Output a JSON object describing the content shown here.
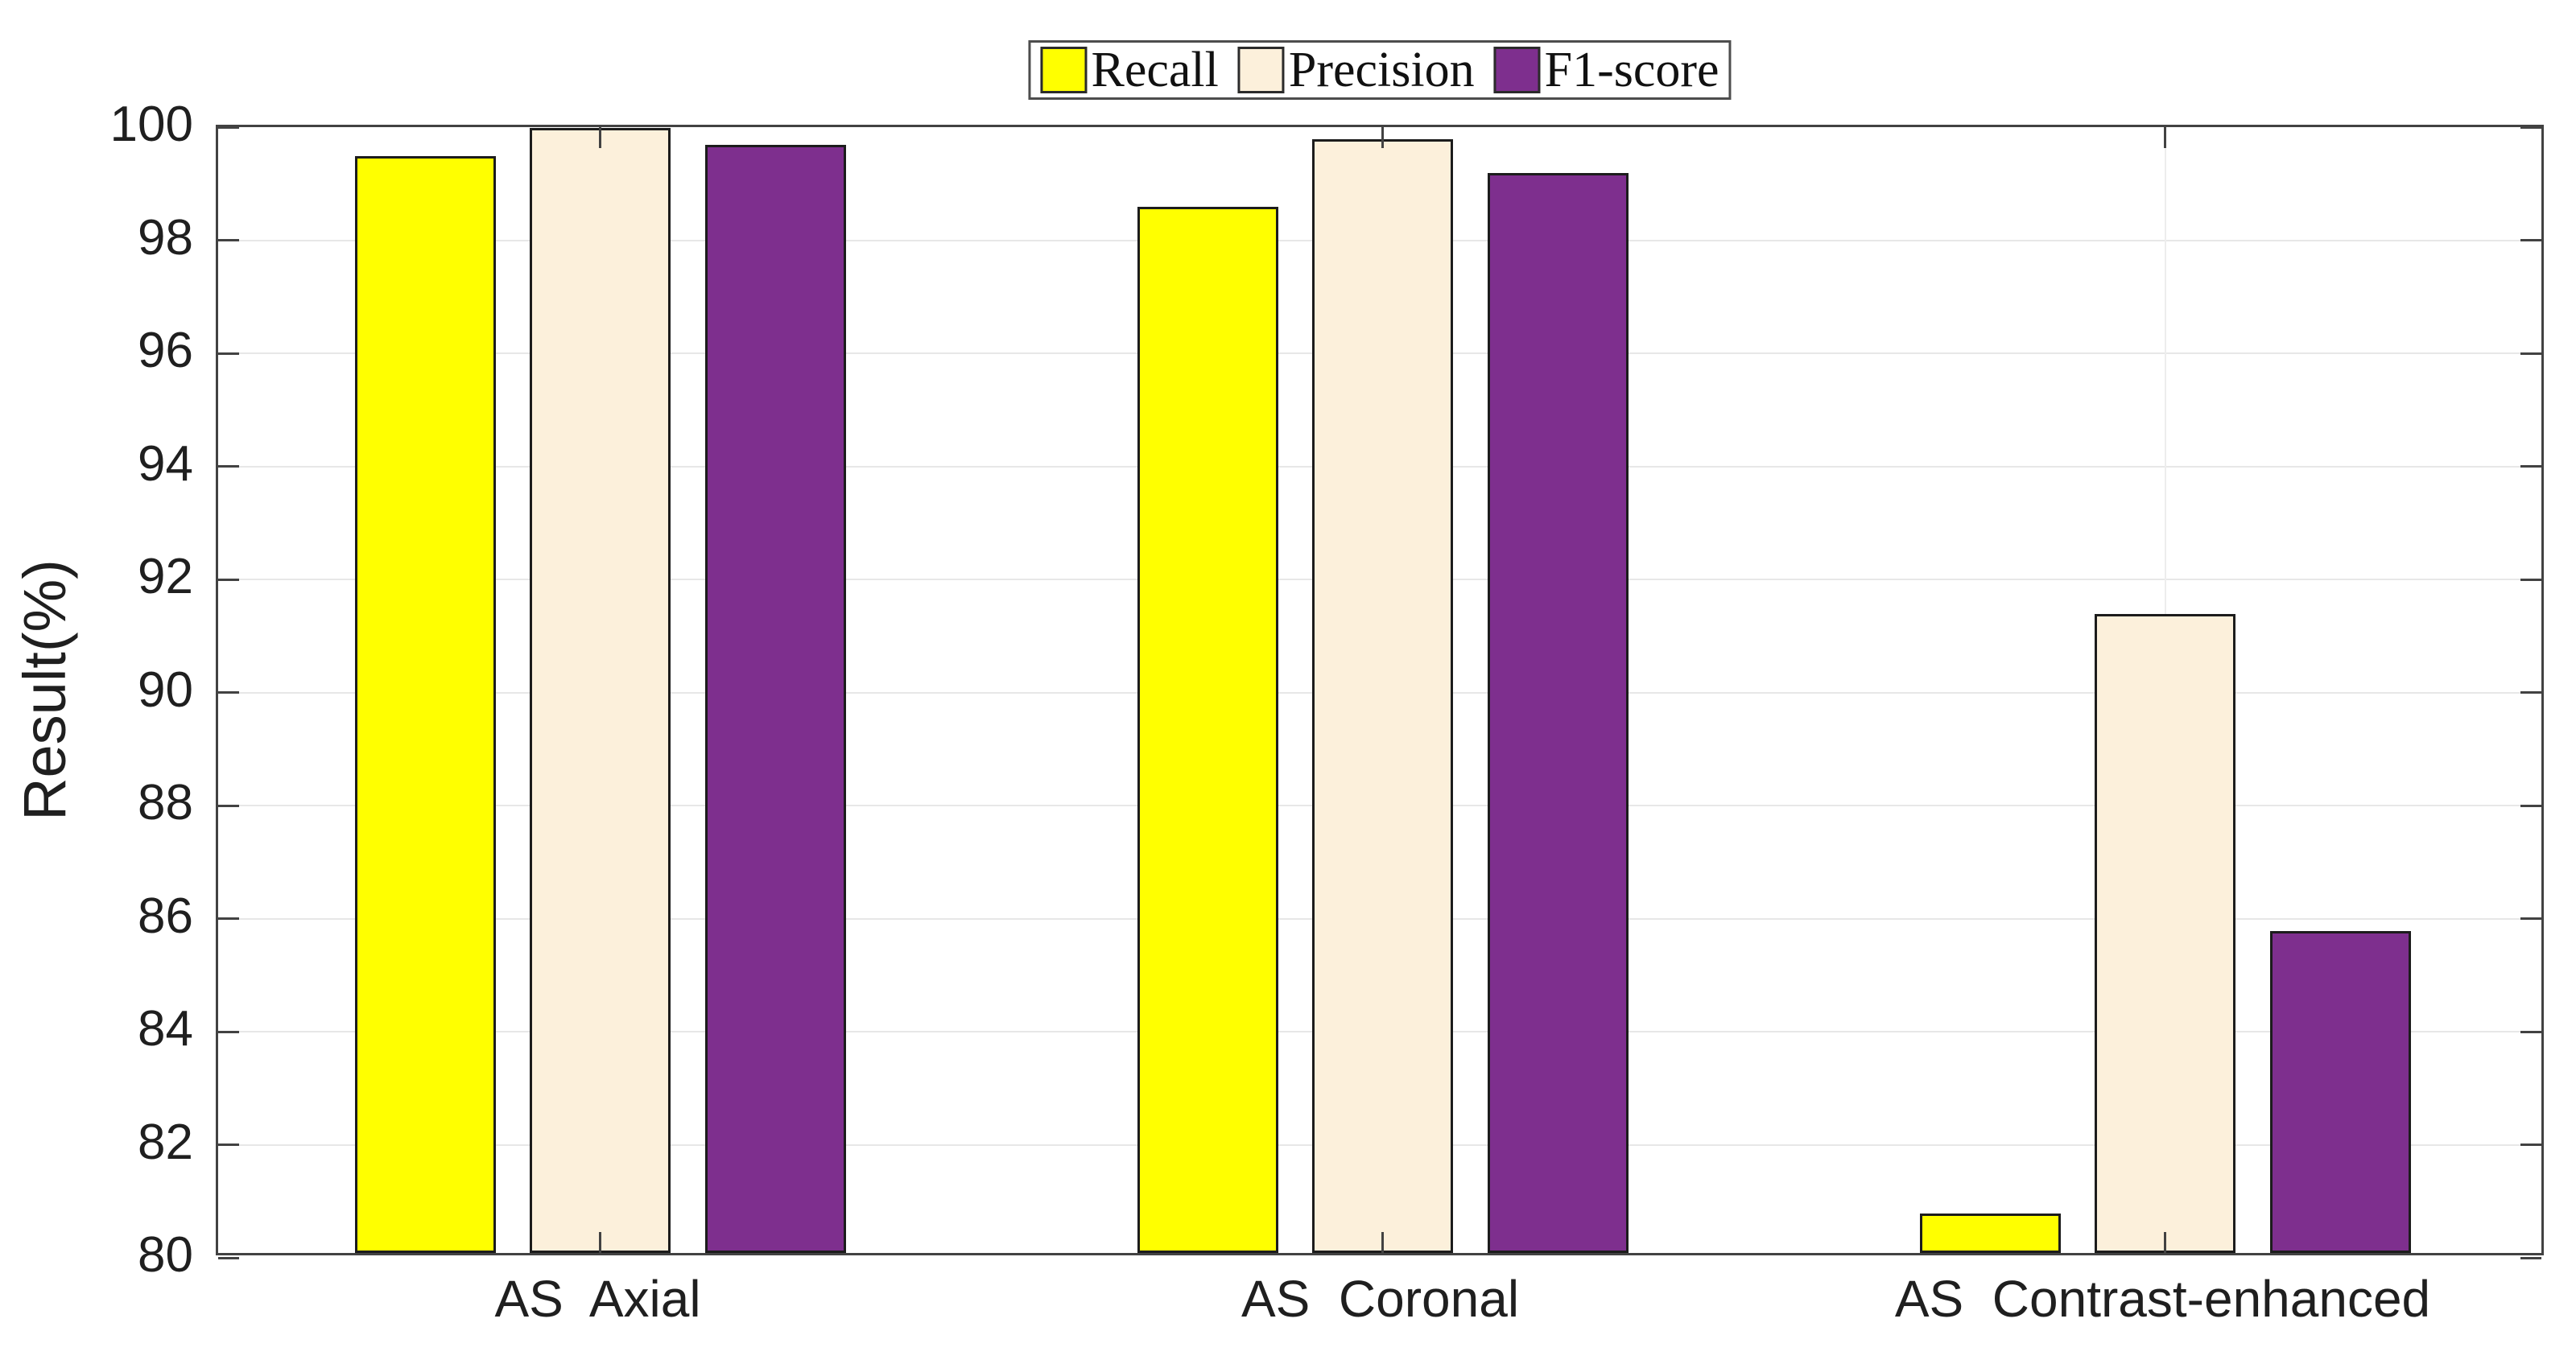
{
  "chart_data": {
    "type": "bar",
    "title": "",
    "xlabel": "",
    "ylabel": "Result(%)",
    "ylim": [
      80,
      100
    ],
    "yticks": [
      80,
      82,
      84,
      86,
      88,
      90,
      92,
      94,
      96,
      98,
      100
    ],
    "grid": true,
    "legend_position": "top-center",
    "categories": [
      "AS  Axial",
      "AS  Coronal",
      "AS  Contrast-enhanced"
    ],
    "series": [
      {
        "name": "Recall",
        "color": "#ffff00",
        "values": [
          99.4,
          98.5,
          80.7
        ]
      },
      {
        "name": "Precision",
        "color": "#fcf0db",
        "values": [
          99.9,
          99.7,
          91.3
        ]
      },
      {
        "name": "F1-score",
        "color": "#7e2f8e",
        "values": [
          99.6,
          99.1,
          85.7
        ]
      }
    ],
    "colors": {
      "bar_edge": "#1c1c1c",
      "axis": "#424242",
      "grid": "#e7e7e7",
      "text": "#1f1f1f"
    }
  }
}
